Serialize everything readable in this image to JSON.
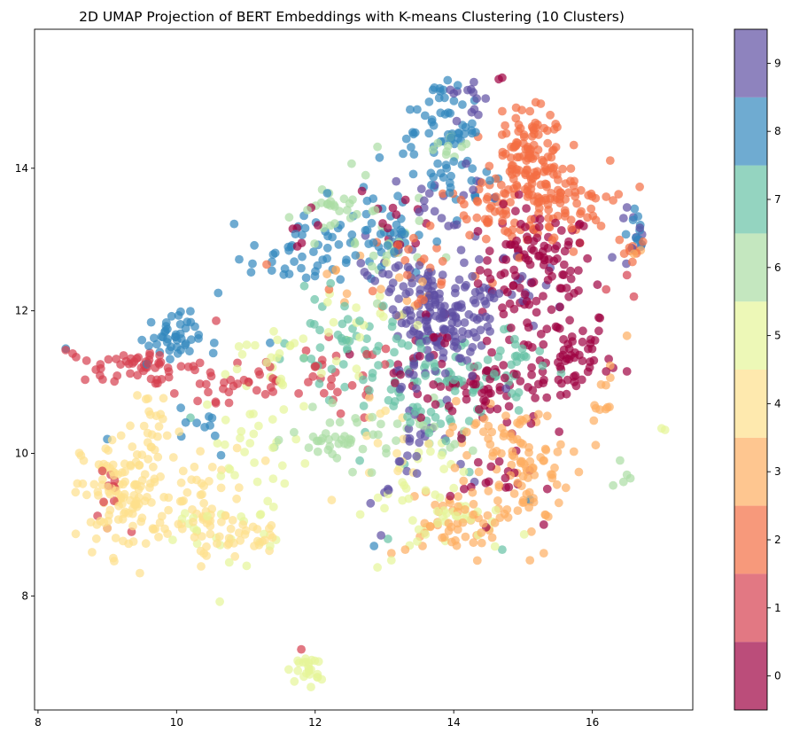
{
  "chart_data": {
    "type": "scatter",
    "title": "2D UMAP Projection of BERT Embeddings with K-means Clustering (10 Clusters)",
    "xlabel": "",
    "ylabel": "",
    "xlim": [
      7.95,
      17.45
    ],
    "ylim": [
      6.4,
      15.95
    ],
    "x_ticks": [
      8,
      10,
      12,
      14,
      16
    ],
    "y_ticks": [
      8,
      10,
      12,
      14
    ],
    "grid": false,
    "marker_alpha": 0.7,
    "colorbar": {
      "ticks": [
        0,
        1,
        2,
        3,
        4,
        5,
        6,
        7,
        8,
        9
      ],
      "range": [
        -0.5,
        9.5
      ],
      "colors": [
        "#9e0142",
        "#d53e4f",
        "#f46d43",
        "#fdae61",
        "#fee08b",
        "#e6f598",
        "#abdda4",
        "#66c2a5",
        "#3288bd",
        "#5e4fa2"
      ]
    },
    "clusters": [
      {
        "label": "0",
        "color": "#9e0142",
        "centers": [
          [
            15.2,
            12.6,
            0.55,
            0.55,
            110
          ],
          [
            15.6,
            11.4,
            0.45,
            0.45,
            60
          ],
          [
            14.5,
            10.9,
            0.5,
            0.4,
            55
          ],
          [
            13.8,
            11.3,
            0.6,
            0.5,
            30
          ],
          [
            14.7,
            9.6,
            0.3,
            0.25,
            15
          ],
          [
            13.2,
            13.3,
            0.4,
            0.4,
            12
          ],
          [
            11.8,
            13.2,
            0.2,
            0.15,
            6
          ]
        ],
        "points": [
          [
            14.65,
            15.25
          ],
          [
            14.7,
            15.27
          ],
          [
            16.2,
            11.15
          ],
          [
            16.3,
            11.2
          ],
          [
            16.5,
            11.15
          ],
          [
            15.3,
            9.0
          ],
          [
            15.35,
            9.5
          ],
          [
            14.15,
            9.5
          ],
          [
            13.95,
            9.4
          ],
          [
            13.45,
            12.95
          ]
        ]
      },
      {
        "label": "1",
        "color": "#d53e4f",
        "centers": [
          [
            9.5,
            11.2,
            0.55,
            0.12,
            45
          ],
          [
            10.8,
            11.0,
            0.7,
            0.35,
            35
          ],
          [
            12.3,
            11.0,
            0.6,
            0.4,
            28
          ],
          [
            9.0,
            9.4,
            0.2,
            0.25,
            8
          ]
        ],
        "points": [
          [
            8.4,
            11.45
          ],
          [
            8.5,
            11.4
          ],
          [
            8.55,
            11.35
          ],
          [
            8.7,
            11.3
          ],
          [
            8.9,
            11.25
          ],
          [
            11.8,
            7.25
          ],
          [
            9.0,
            8.95
          ],
          [
            9.05,
            9.7
          ],
          [
            9.35,
            8.9
          ],
          [
            16.6,
            12.2
          ],
          [
            16.5,
            12.5
          ],
          [
            16.2,
            12.3
          ]
        ]
      },
      {
        "label": "2",
        "color": "#f46d43",
        "centers": [
          [
            15.1,
            14.1,
            0.35,
            0.45,
            120
          ],
          [
            15.5,
            13.5,
            0.5,
            0.4,
            70
          ],
          [
            14.6,
            13.3,
            0.6,
            0.4,
            40
          ],
          [
            13.6,
            12.6,
            0.6,
            0.45,
            20
          ],
          [
            16.6,
            12.9,
            0.15,
            0.1,
            8
          ]
        ],
        "points": [
          [
            16.2,
            13.6
          ],
          [
            16.3,
            13.55
          ],
          [
            14.7,
            14.8
          ],
          [
            14.9,
            14.85
          ],
          [
            15.1,
            14.8
          ],
          [
            12.2,
            12.3
          ],
          [
            11.3,
            12.65
          ]
        ]
      },
      {
        "label": "3",
        "color": "#fdae61",
        "centers": [
          [
            15.0,
            9.7,
            0.45,
            0.55,
            75
          ],
          [
            13.9,
            9.0,
            0.5,
            0.35,
            45
          ],
          [
            14.6,
            10.3,
            0.45,
            0.3,
            30
          ],
          [
            12.9,
            12.4,
            0.5,
            0.4,
            15
          ],
          [
            16.1,
            10.7,
            0.15,
            0.35,
            12
          ]
        ],
        "points": [
          [
            13.1,
            8.6
          ],
          [
            13.3,
            8.65
          ],
          [
            13.55,
            8.7
          ],
          [
            15.1,
            8.5
          ],
          [
            15.3,
            8.6
          ],
          [
            16.5,
            11.65
          ],
          [
            16.6,
            12.8
          ],
          [
            16.7,
            12.85
          ]
        ]
      },
      {
        "label": "4",
        "color": "#fee08b",
        "centers": [
          [
            9.3,
            9.4,
            0.45,
            0.55,
            120
          ],
          [
            10.3,
            9.4,
            0.5,
            0.55,
            40
          ],
          [
            10.6,
            8.95,
            0.6,
            0.15,
            25
          ],
          [
            11.0,
            8.75,
            0.4,
            0.1,
            15
          ],
          [
            9.7,
            10.4,
            0.3,
            0.4,
            20
          ],
          [
            13.3,
            10.0,
            0.5,
            0.5,
            15
          ]
        ],
        "points": [
          [
            8.85,
            9.0
          ],
          [
            8.9,
            9.05
          ],
          [
            9.0,
            8.95
          ]
        ]
      },
      {
        "label": "5",
        "color": "#e6f598",
        "centers": [
          [
            11.9,
            6.95,
            0.1,
            0.15,
            20
          ],
          [
            11.1,
            9.9,
            0.5,
            0.9,
            45
          ],
          [
            11.6,
            11.2,
            0.5,
            0.5,
            25
          ],
          [
            13.4,
            9.6,
            0.5,
            0.5,
            25
          ],
          [
            14.1,
            9.0,
            0.45,
            0.25,
            25
          ],
          [
            12.6,
            11.9,
            0.5,
            0.4,
            15
          ],
          [
            10.3,
            9.0,
            0.4,
            0.2,
            10
          ]
        ],
        "points": [
          [
            11.95,
            7.1
          ],
          [
            11.7,
            6.8
          ],
          [
            11.75,
            6.95
          ],
          [
            12.05,
            7.08
          ],
          [
            12.9,
            8.4
          ],
          [
            13.1,
            8.5
          ],
          [
            17.0,
            10.35
          ],
          [
            17.05,
            10.33
          ],
          [
            11.35,
            8.7
          ],
          [
            11.2,
            8.75
          ],
          [
            10.9,
            11.5
          ]
        ]
      },
      {
        "label": "6",
        "color": "#abdda4",
        "centers": [
          [
            12.4,
            10.2,
            0.5,
            0.25,
            40
          ],
          [
            12.3,
            13.3,
            0.35,
            0.35,
            25
          ],
          [
            13.0,
            12.9,
            0.4,
            0.5,
            20
          ],
          [
            13.6,
            10.2,
            0.5,
            0.3,
            15
          ],
          [
            14.0,
            14.3,
            0.3,
            0.2,
            10
          ]
        ],
        "points": [
          [
            16.5,
            9.7
          ],
          [
            16.55,
            9.65
          ],
          [
            16.45,
            9.6
          ],
          [
            16.3,
            9.55
          ],
          [
            16.4,
            9.9
          ],
          [
            12.1,
            13.7
          ],
          [
            12.2,
            13.65
          ],
          [
            12.9,
            14.3
          ]
        ]
      },
      {
        "label": "7",
        "color": "#66c2a5",
        "centers": [
          [
            12.4,
            11.6,
            0.5,
            0.4,
            40
          ],
          [
            13.2,
            11.1,
            0.5,
            0.4,
            35
          ],
          [
            14.2,
            11.2,
            0.5,
            0.3,
            35
          ],
          [
            14.9,
            11.3,
            0.4,
            0.4,
            20
          ],
          [
            13.6,
            10.3,
            0.5,
            0.35,
            20
          ]
        ],
        "points": [
          [
            10.2,
            10.5
          ],
          [
            14.7,
            8.65
          ],
          [
            13.05,
            8.8
          ]
        ]
      },
      {
        "label": "8",
        "color": "#3288bd",
        "centers": [
          [
            9.9,
            11.6,
            0.3,
            0.25,
            45
          ],
          [
            11.8,
            12.8,
            0.5,
            0.35,
            45
          ],
          [
            13.0,
            13.1,
            0.45,
            0.4,
            40
          ],
          [
            13.8,
            14.6,
            0.35,
            0.4,
            50
          ],
          [
            14.2,
            13.8,
            0.4,
            0.3,
            25
          ],
          [
            16.6,
            13.15,
            0.15,
            0.3,
            10
          ],
          [
            10.3,
            10.4,
            0.4,
            0.3,
            10
          ]
        ],
        "points": [
          [
            8.4,
            11.47
          ],
          [
            9.0,
            10.2
          ],
          [
            10.6,
            12.25
          ],
          [
            13.7,
            15.1
          ],
          [
            13.72,
            15.13
          ],
          [
            13.8,
            15.12
          ],
          [
            13.85,
            15.1
          ],
          [
            14.3,
            14.95
          ],
          [
            15.1,
            9.35
          ],
          [
            12.85,
            8.7
          ],
          [
            11.35,
            11.55
          ]
        ]
      },
      {
        "label": "9",
        "color": "#5e4fa2",
        "centers": [
          [
            13.8,
            11.8,
            0.45,
            0.55,
            130
          ],
          [
            14.5,
            12.3,
            0.5,
            0.4,
            45
          ],
          [
            13.2,
            12.4,
            0.45,
            0.4,
            30
          ],
          [
            13.4,
            10.2,
            0.3,
            0.4,
            20
          ],
          [
            13.8,
            13.6,
            0.4,
            0.4,
            20
          ],
          [
            16.6,
            13.0,
            0.15,
            0.25,
            8
          ],
          [
            14.2,
            15.0,
            0.2,
            0.15,
            10
          ]
        ],
        "points": [
          [
            13.95,
            15.1
          ],
          [
            14.0,
            15.05
          ],
          [
            14.05,
            15.08
          ],
          [
            13.0,
            9.45
          ],
          [
            13.05,
            9.5
          ],
          [
            12.8,
            9.3
          ],
          [
            12.95,
            8.85
          ],
          [
            14.1,
            9.85
          ],
          [
            14.3,
            9.6
          ],
          [
            16.45,
            13.3
          ],
          [
            16.5,
            13.45
          ],
          [
            16.7,
            12.9
          ]
        ]
      }
    ]
  }
}
